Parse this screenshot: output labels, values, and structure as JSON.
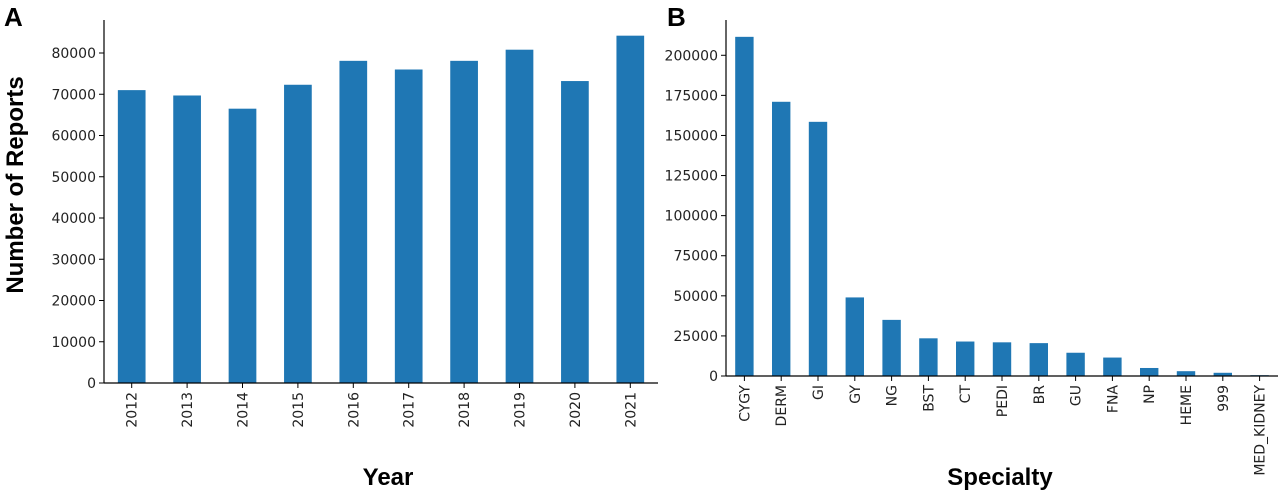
{
  "bar_color": "#1f77b4",
  "chart_data": [
    {
      "type": "bar",
      "panel_label": "A",
      "categories": [
        "2012",
        "2013",
        "2014",
        "2015",
        "2016",
        "2017",
        "2018",
        "2019",
        "2020",
        "2021"
      ],
      "values": [
        71000,
        69700,
        66500,
        72300,
        78100,
        76000,
        78100,
        80800,
        73200,
        84200
      ],
      "yticks": [
        "0",
        "10000",
        "20000",
        "30000",
        "40000",
        "50000",
        "60000",
        "70000",
        "80000"
      ],
      "xlabel": "Year",
      "ylabel": "Number of Reports",
      "ylim": [
        0,
        88000
      ],
      "grid": false
    },
    {
      "type": "bar",
      "panel_label": "B",
      "categories": [
        "CYGY",
        "DERM",
        "GI",
        "GY",
        "NG",
        "BST",
        "CT",
        "PEDI",
        "BR",
        "GU",
        "FNA",
        "NP",
        "HEME",
        "999",
        "MED_KIDNEY"
      ],
      "values": [
        211500,
        171000,
        158500,
        49000,
        35000,
        23500,
        21500,
        21000,
        20500,
        14500,
        11500,
        5000,
        3000,
        2000,
        500
      ],
      "yticks": [
        "0",
        "25000",
        "50000",
        "75000",
        "100000",
        "125000",
        "150000",
        "175000",
        "200000"
      ],
      "xlabel": "Specialty",
      "ylabel": "",
      "ylim": [
        0,
        222000
      ],
      "grid": false
    }
  ]
}
